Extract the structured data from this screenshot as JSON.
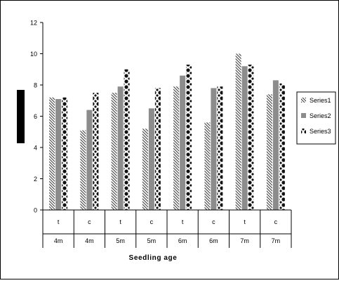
{
  "chart_data": {
    "type": "bar",
    "title": "",
    "xlabel": "Seedling age",
    "ylabel": "",
    "ylim": [
      0,
      12
    ],
    "yticks": [
      0,
      2,
      4,
      6,
      8,
      10,
      12
    ],
    "categories": [
      {
        "treatment": "t",
        "age": "4m"
      },
      {
        "treatment": "c",
        "age": "4m"
      },
      {
        "treatment": "t",
        "age": "5m"
      },
      {
        "treatment": "c",
        "age": "5m"
      },
      {
        "treatment": "t",
        "age": "6m"
      },
      {
        "treatment": "c",
        "age": "6m"
      },
      {
        "treatment": "t",
        "age": "7m"
      },
      {
        "treatment": "c",
        "age": "7m"
      }
    ],
    "series": [
      {
        "name": "Series1",
        "values": [
          7.2,
          5.1,
          7.5,
          5.2,
          7.9,
          5.6,
          10.0,
          7.4
        ]
      },
      {
        "name": "Series2",
        "values": [
          7.1,
          6.4,
          7.9,
          6.5,
          8.6,
          7.8,
          9.2,
          8.3
        ]
      },
      {
        "name": "Series3",
        "values": [
          7.2,
          7.5,
          9.0,
          7.8,
          9.3,
          7.9,
          9.3,
          8.1
        ]
      }
    ],
    "grid": false,
    "legend_position": "right"
  }
}
